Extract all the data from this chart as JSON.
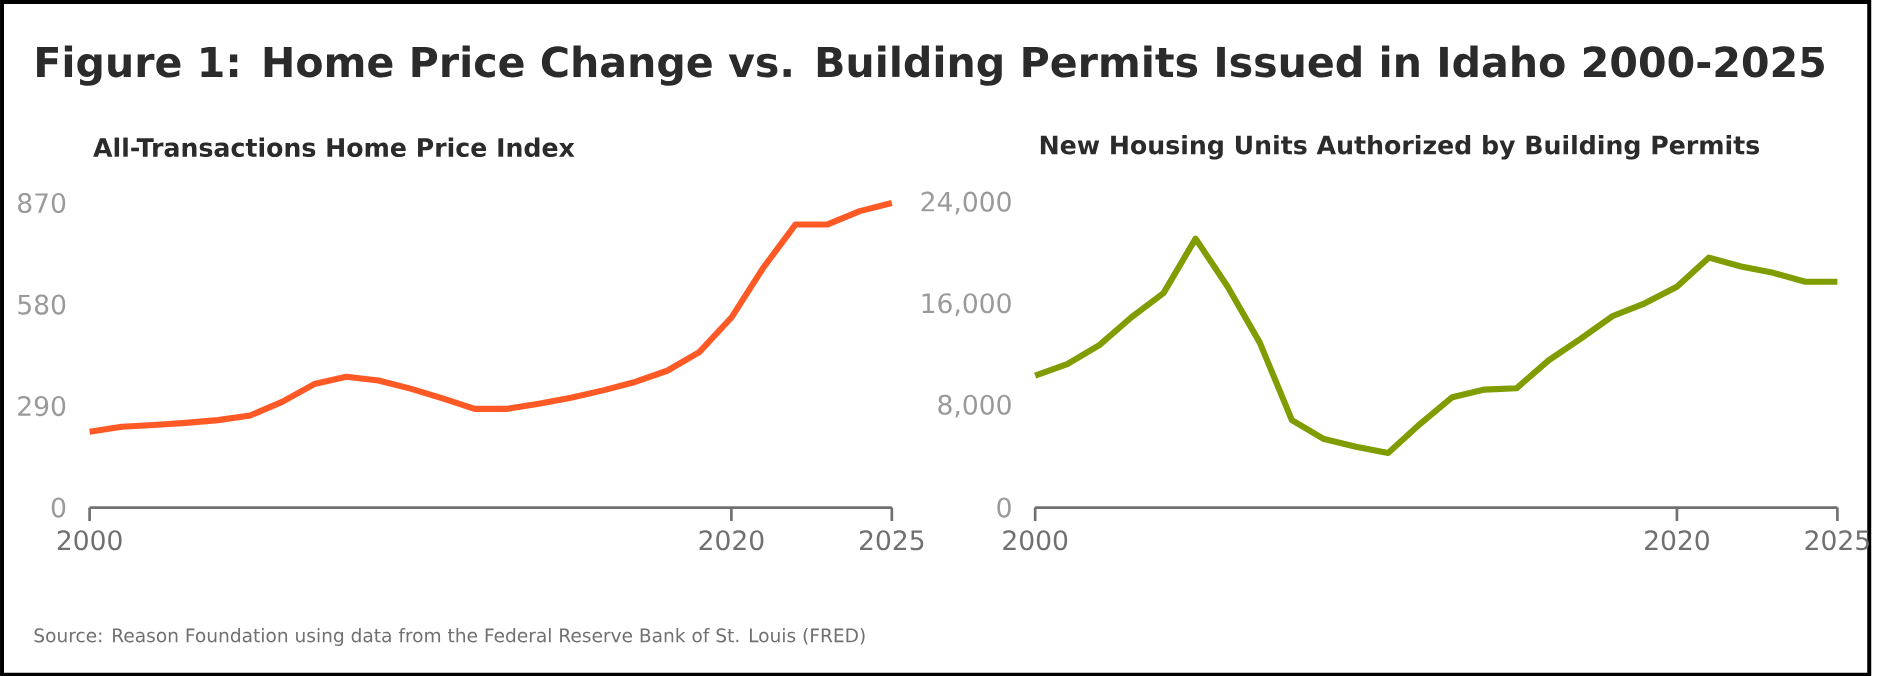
{
  "chart_data": [
    {
      "type": "line",
      "title": "Figure 1: Home Price Change vs. Building Permits Issued in Idaho 2000-2025",
      "subtitle": "All-Transactions Home Price Index",
      "annotations": [
        "Source: Reason Foundation using data from the Federal Reserve Bank of St. Louis (FRED)"
      ],
      "color": "#ff5a26",
      "x": [
        2000,
        2001,
        2002,
        2003,
        2004,
        2005,
        2006,
        2007,
        2008,
        2009,
        2010,
        2011,
        2012,
        2013,
        2014,
        2015,
        2016,
        2017,
        2018,
        2019,
        2020,
        2021,
        2022,
        2023,
        2024,
        2025
      ],
      "values": [
        217,
        231,
        236,
        242,
        250,
        263,
        302,
        353,
        374,
        363,
        340,
        312,
        282,
        282,
        297,
        314,
        335,
        359,
        391,
        444,
        543,
        686,
        809,
        809,
        847,
        870
      ],
      "xlim": [
        2000,
        2025
      ],
      "xticks": [
        2000,
        2020,
        2025
      ],
      "ylim": [
        0,
        870
      ],
      "yticks": [
        0,
        290,
        580,
        870
      ]
    },
    {
      "type": "line",
      "subtitle": "New Housing Units Authorized by Building Permits",
      "color": "#7f9c00",
      "x": [
        2000,
        2001,
        2002,
        2003,
        2004,
        2005,
        2006,
        2007,
        2008,
        2009,
        2010,
        2011,
        2012,
        2013,
        2014,
        2015,
        2016,
        2017,
        2018,
        2019,
        2020,
        2021,
        2022,
        2023,
        2024,
        2025
      ],
      "values": [
        10400,
        11300,
        12800,
        15000,
        16900,
        21200,
        17400,
        13000,
        6900,
        5400,
        4800,
        4300,
        6600,
        8700,
        9300,
        9400,
        11600,
        13300,
        15100,
        16100,
        17400,
        19700,
        19000,
        18500,
        17800,
        17800
      ],
      "xlim": [
        2000,
        2025
      ],
      "xticks": [
        2000,
        2020,
        2025
      ],
      "ylim": [
        0,
        24000
      ],
      "yticks": [
        0,
        {
          "value": 8000,
          "label": "8,000"
        },
        {
          "value": 16000,
          "label": "16,000"
        },
        {
          "value": 24000,
          "label": "24,000"
        }
      ]
    }
  ]
}
